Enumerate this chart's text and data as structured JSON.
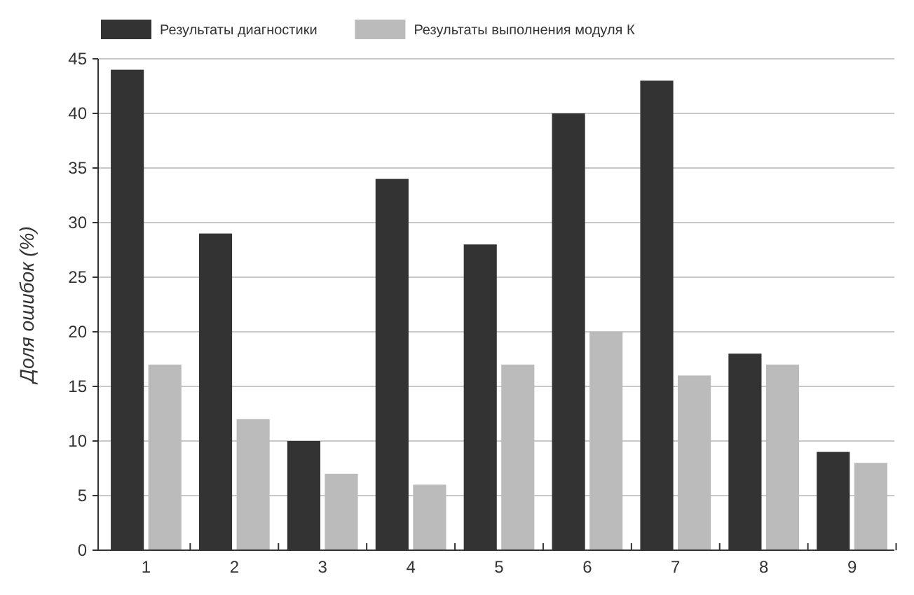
{
  "chart_data": {
    "type": "bar",
    "ylabel": "Доля ошибок (%)",
    "categories": [
      "1",
      "2",
      "3",
      "4",
      "5",
      "6",
      "7",
      "8",
      "9"
    ],
    "series": [
      {
        "name": "Результаты диагностики",
        "color": "#333333",
        "values": [
          44,
          29,
          10,
          34,
          28,
          40,
          43,
          18,
          9
        ]
      },
      {
        "name": "Результаты выполнения модуля К",
        "color": "#bbbbbb",
        "values": [
          17,
          12,
          7,
          6,
          17,
          20,
          16,
          17,
          8
        ]
      }
    ],
    "ylim": [
      0,
      45
    ],
    "yticks": [
      0,
      5,
      10,
      15,
      20,
      25,
      30,
      35,
      40,
      45
    ],
    "grid": "y",
    "legend": "top"
  }
}
